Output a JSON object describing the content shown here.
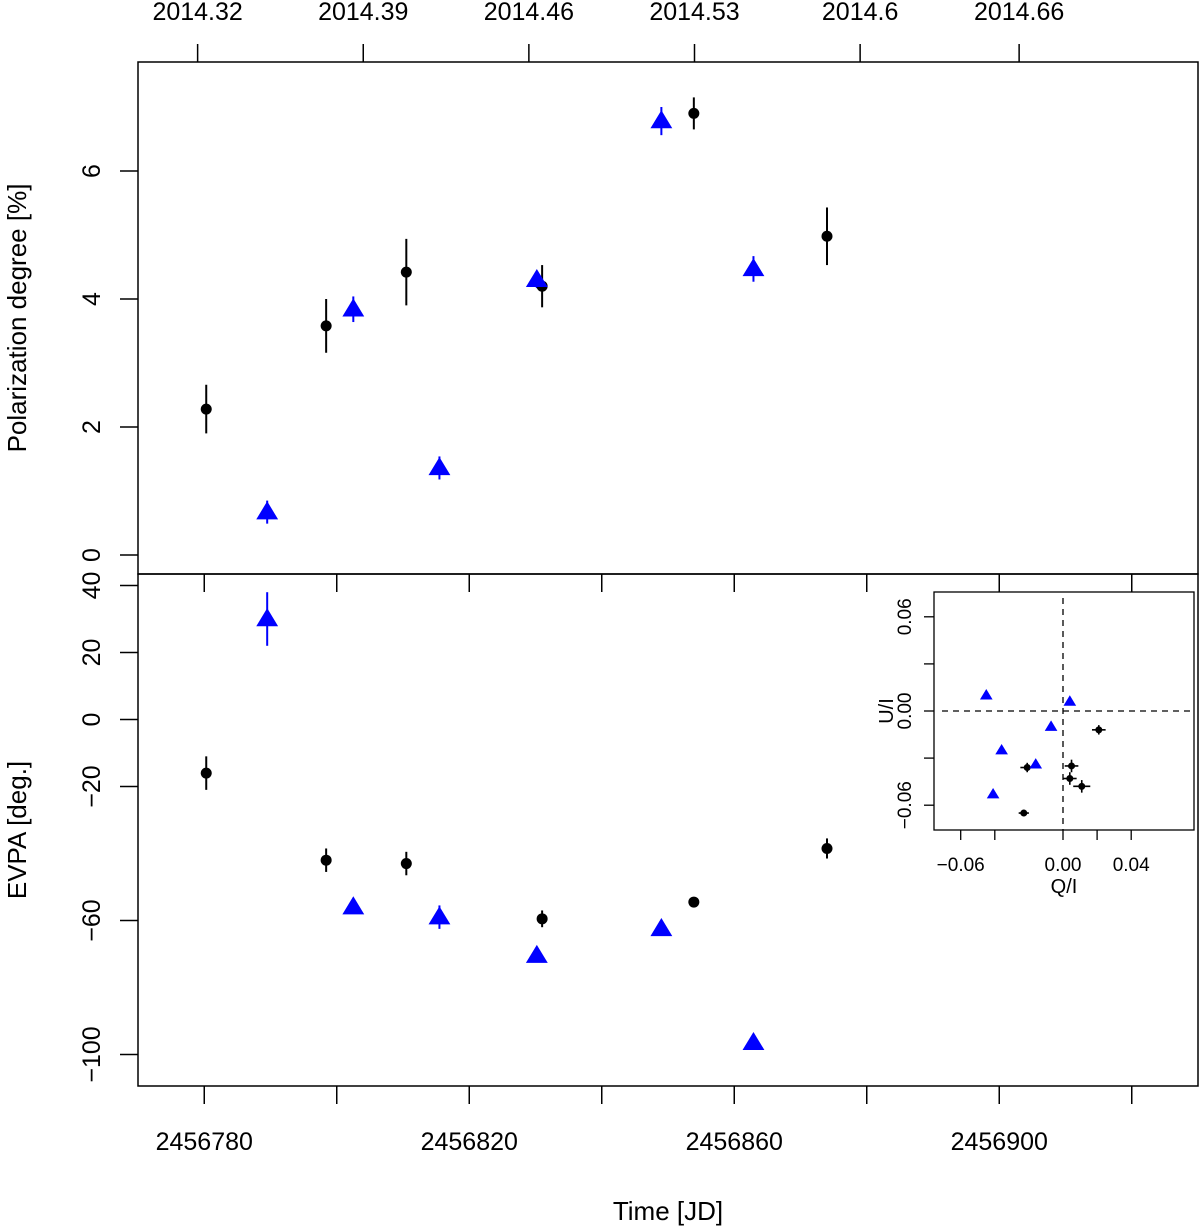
{
  "chart_data": [
    {
      "type": "scatter",
      "panel": "top",
      "title": "",
      "ylabel": "Polarization degree [%]",
      "xlabel": "Time [JD]",
      "xlim": [
        2456770,
        2456930
      ],
      "ylim": [
        0,
        7.5
      ],
      "y_ticks": [
        0,
        2,
        4,
        6
      ],
      "y_tick_labels": [
        "0",
        "2",
        "4",
        "6"
      ],
      "top_axis": {
        "ticks": [
          2456779.0,
          2456804.0,
          2456829.0,
          2456854.0,
          2456879.0,
          2456903.0
        ],
        "labels": [
          "2014.32",
          "2014.39",
          "2014.46",
          "2014.53",
          "2014.6",
          "2014.66"
        ]
      },
      "series": [
        {
          "name": "black circles",
          "marker": "circle",
          "color": "#000000",
          "points": [
            {
              "x": 2456780.3,
              "y": 2.28,
              "err": 0.38
            },
            {
              "x": 2456798.4,
              "y": 3.58,
              "err": 0.42
            },
            {
              "x": 2456810.5,
              "y": 4.42,
              "err": 0.52
            },
            {
              "x": 2456831.0,
              "y": 4.2,
              "err": 0.33
            },
            {
              "x": 2456853.9,
              "y": 6.9,
              "err": 0.25
            },
            {
              "x": 2456874.0,
              "y": 4.98,
              "err": 0.45
            }
          ]
        },
        {
          "name": "blue triangles",
          "marker": "triangle",
          "color": "#0000ff",
          "points": [
            {
              "x": 2456789.5,
              "y": 0.67,
              "err": 0.18
            },
            {
              "x": 2456802.5,
              "y": 3.84,
              "err": 0.2
            },
            {
              "x": 2456815.5,
              "y": 1.36,
              "err": 0.18
            },
            {
              "x": 2456830.2,
              "y": 4.3,
              "err": 0.13
            },
            {
              "x": 2456849.0,
              "y": 6.78,
              "err": 0.22
            },
            {
              "x": 2456862.9,
              "y": 4.47,
              "err": 0.2
            }
          ]
        }
      ]
    },
    {
      "type": "scatter",
      "panel": "bottom",
      "title": "",
      "ylabel": "EVPA [deg.]",
      "xlabel": "Time [JD]",
      "xlim": [
        2456770,
        2456930
      ],
      "ylim": [
        -110,
        40.5
      ],
      "y_ticks": [
        -100,
        -60,
        -20,
        0,
        20,
        40
      ],
      "y_tick_labels": [
        "-100",
        "-60",
        "-20",
        "0",
        "20",
        "40"
      ],
      "x_ticks": [
        2456780,
        2456800,
        2456820,
        2456840,
        2456860,
        2456880,
        2456900,
        2456920
      ],
      "x_tick_labels": [
        "2456780",
        "2456820",
        "2456860",
        "2456900"
      ],
      "series": [
        {
          "name": "black circles",
          "marker": "circle",
          "color": "#000000",
          "points": [
            {
              "x": 2456780.3,
              "y": -16.0,
              "err": 5.0
            },
            {
              "x": 2456798.4,
              "y": -42.0,
              "err": 3.5
            },
            {
              "x": 2456810.5,
              "y": -43.0,
              "err": 3.5
            },
            {
              "x": 2456831.0,
              "y": -59.5,
              "err": 2.5
            },
            {
              "x": 2456853.9,
              "y": -54.5,
              "err": 1.0
            },
            {
              "x": 2456874.0,
              "y": -38.5,
              "err": 3.0
            }
          ]
        },
        {
          "name": "blue triangles",
          "marker": "triangle",
          "color": "#0000ff",
          "points": [
            {
              "x": 2456789.5,
              "y": 30.0,
              "err": 8.0
            },
            {
              "x": 2456802.5,
              "y": -56.0,
              "err": 1.5
            },
            {
              "x": 2456815.5,
              "y": -59.0,
              "err": 3.5
            },
            {
              "x": 2456830.2,
              "y": -70.5,
              "err": 1.0
            },
            {
              "x": 2456849.0,
              "y": -62.5,
              "err": 1.0
            },
            {
              "x": 2456862.9,
              "y": -96.5,
              "err": 1.0
            }
          ]
        }
      ]
    },
    {
      "type": "scatter",
      "panel": "inset",
      "title": "",
      "xlabel": "Q/I",
      "ylabel": "U/I",
      "xlim": [
        -0.077,
        0.082
      ],
      "ylim": [
        -0.075,
        0.075
      ],
      "x_ticks": [
        -0.06,
        0.0,
        0.04
      ],
      "x_tick_labels": [
        "-0.06",
        "0.00",
        "0.04"
      ],
      "y_ticks": [
        -0.06,
        0.0,
        0.06
      ],
      "y_tick_labels": [
        "-0.06",
        "0.00",
        "0.06"
      ],
      "reference_lines": {
        "x": 0.0,
        "y": 0.0,
        "style": "dashed"
      },
      "series": [
        {
          "name": "black circles",
          "marker": "circle",
          "color": "#000000",
          "points": [
            {
              "x": 0.021,
              "y": -0.012,
              "xerr": 0.004,
              "yerr": 0.003
            },
            {
              "x": 0.005,
              "y": -0.035,
              "xerr": 0.004,
              "yerr": 0.004
            },
            {
              "x": -0.021,
              "y": -0.036,
              "xerr": 0.004,
              "yerr": 0.003
            },
            {
              "x": 0.004,
              "y": -0.043,
              "xerr": 0.004,
              "yerr": 0.004
            },
            {
              "x": 0.011,
              "y": -0.048,
              "xerr": 0.005,
              "yerr": 0.004
            },
            {
              "x": -0.023,
              "y": -0.065,
              "xerr": 0.003,
              "yerr": 0.002
            }
          ]
        },
        {
          "name": "blue triangles",
          "marker": "triangle",
          "color": "#0000ff",
          "points": [
            {
              "x": -0.045,
              "y": 0.01
            },
            {
              "x": 0.004,
              "y": 0.006
            },
            {
              "x": -0.007,
              "y": -0.01
            },
            {
              "x": -0.036,
              "y": -0.025
            },
            {
              "x": -0.016,
              "y": -0.034
            },
            {
              "x": -0.041,
              "y": -0.053
            }
          ]
        }
      ]
    }
  ]
}
